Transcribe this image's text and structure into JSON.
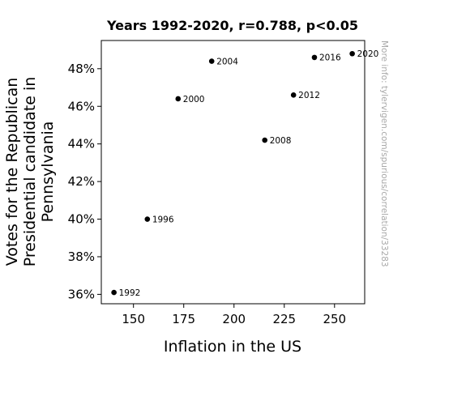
{
  "chart_data": {
    "type": "scatter",
    "title": "Years 1992-2020, r=0.788, p<0.05",
    "xlabel": "Inflation in the US",
    "ylabel_lines": [
      "Votes for the Republican",
      "Presidential candidate in",
      "Pennsylvania"
    ],
    "xlim": [
      134,
      265
    ],
    "ylim": [
      35.5,
      49.5
    ],
    "x_ticks": [
      150,
      175,
      200,
      225,
      250
    ],
    "y_ticks": [
      36,
      38,
      40,
      42,
      44,
      46,
      48
    ],
    "y_tick_suffix": "%",
    "grid": false,
    "marker_color": "#000000",
    "points": [
      {
        "label": "1992",
        "x": 140.3,
        "y": 36.1
      },
      {
        "label": "1996",
        "x": 156.9,
        "y": 40.0
      },
      {
        "label": "2000",
        "x": 172.2,
        "y": 46.4
      },
      {
        "label": "2004",
        "x": 188.9,
        "y": 48.4
      },
      {
        "label": "2008",
        "x": 215.3,
        "y": 44.2
      },
      {
        "label": "2012",
        "x": 229.6,
        "y": 46.6
      },
      {
        "label": "2016",
        "x": 240.0,
        "y": 48.6
      },
      {
        "label": "2020",
        "x": 258.8,
        "y": 48.8
      }
    ],
    "watermark": "More info: tylervigen.com/spurious/correlation/33283"
  }
}
